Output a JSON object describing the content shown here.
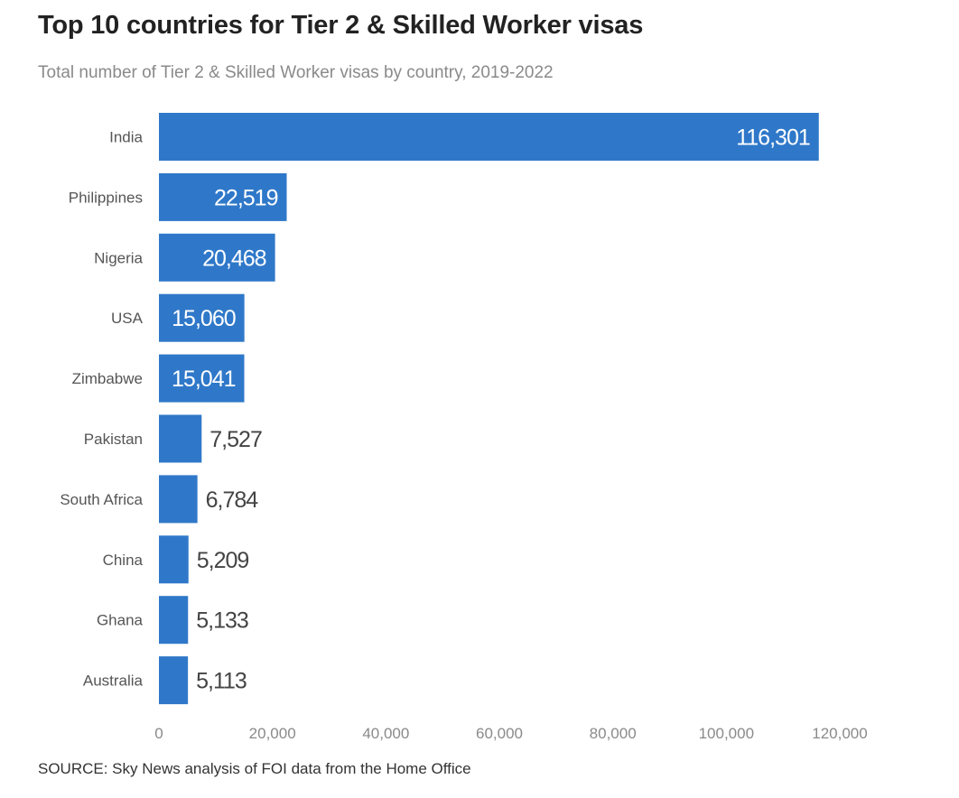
{
  "colors": {
    "bar": "#2f78c9",
    "value_inside": "#ffffff",
    "value_outside": "#444444",
    "category_label": "#555555",
    "tick_label": "#8a8a8a"
  },
  "chart_data": {
    "type": "bar",
    "orientation": "horizontal",
    "title": "Top 10 countries for Tier 2 & Skilled Worker visas",
    "subtitle": "Total number of Tier 2 & Skilled Worker visas by country, 2019-2022",
    "categories": [
      "India",
      "Philippines",
      "Nigeria",
      "USA",
      "Zimbabwe",
      "Pakistan",
      "South Africa",
      "China",
      "Ghana",
      "Australia"
    ],
    "values": [
      116301,
      22519,
      20468,
      15060,
      15041,
      7527,
      6784,
      5209,
      5133,
      5113
    ],
    "value_labels": [
      "116,301",
      "22,519",
      "20,468",
      "15,060",
      "15,041",
      "7,527",
      "6,784",
      "5,209",
      "5,133",
      "5,113"
    ],
    "xlim": [
      0,
      120000
    ],
    "xticks": [
      0,
      20000,
      40000,
      60000,
      80000,
      100000,
      120000
    ],
    "xtick_labels": [
      "0",
      "20,000",
      "40,000",
      "60,000",
      "80,000",
      "100,000",
      "120,000"
    ],
    "grid": false,
    "legend": "none",
    "source": "SOURCE: Sky News analysis of FOI data from the Home Office"
  }
}
